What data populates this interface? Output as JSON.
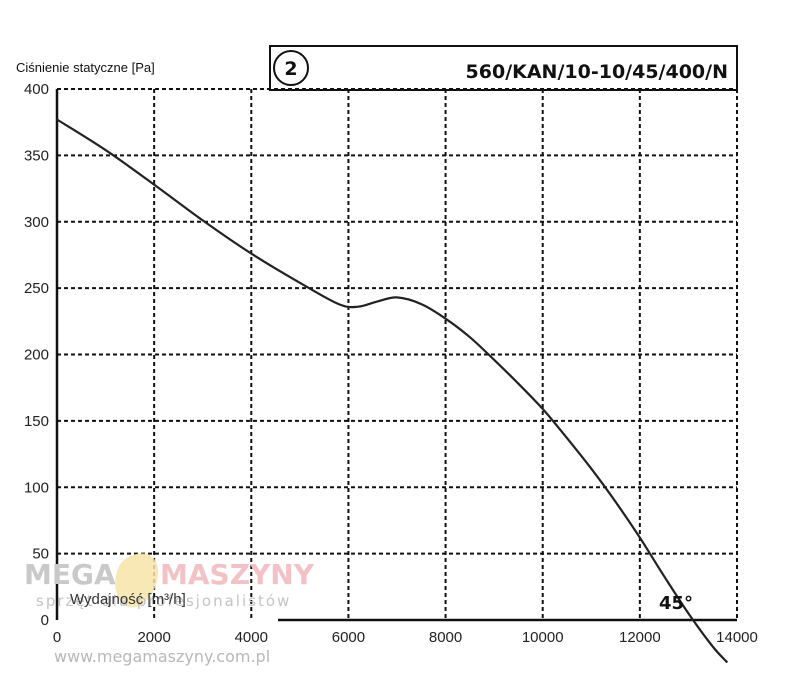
{
  "chart_data": {
    "type": "line",
    "ylabel": "Ciśnienie statyczne [Pa]",
    "xlabel": "Wydajność [m³/h]",
    "series_id": "2",
    "model": "560/KAN/10-10/45/400/N",
    "annotation": "45°",
    "xlim": [
      0,
      14000
    ],
    "ylim": [
      0,
      400
    ],
    "x_ticks": [
      "0",
      "2000",
      "4000",
      "6000",
      "8000",
      "10000",
      "12000",
      "14000"
    ],
    "y_ticks": [
      "0",
      "50",
      "100",
      "150",
      "200",
      "250",
      "300",
      "350",
      "400"
    ],
    "grid": true,
    "series": [
      {
        "x": [
          0,
          1000,
          2000,
          3000,
          4000,
          5000,
          5800,
          6200,
          6600,
          7000,
          7500,
          8000,
          8500,
          9000,
          9500,
          10000,
          10500,
          11000,
          11500,
          12000,
          12500,
          13000,
          13500,
          13800
        ],
        "y": [
          377,
          354,
          328,
          301,
          276,
          254,
          238,
          236,
          240,
          243,
          238,
          227,
          213,
          196,
          178,
          159,
          137,
          114,
          89,
          62,
          33,
          5,
          -20,
          -32
        ]
      }
    ]
  },
  "watermark": {
    "brand_left": "MEGA",
    "brand_right": "MASZYNY",
    "tagline": "sprzęt dla profesjonalistów",
    "url": "www.megamaszyny.com.pl"
  }
}
